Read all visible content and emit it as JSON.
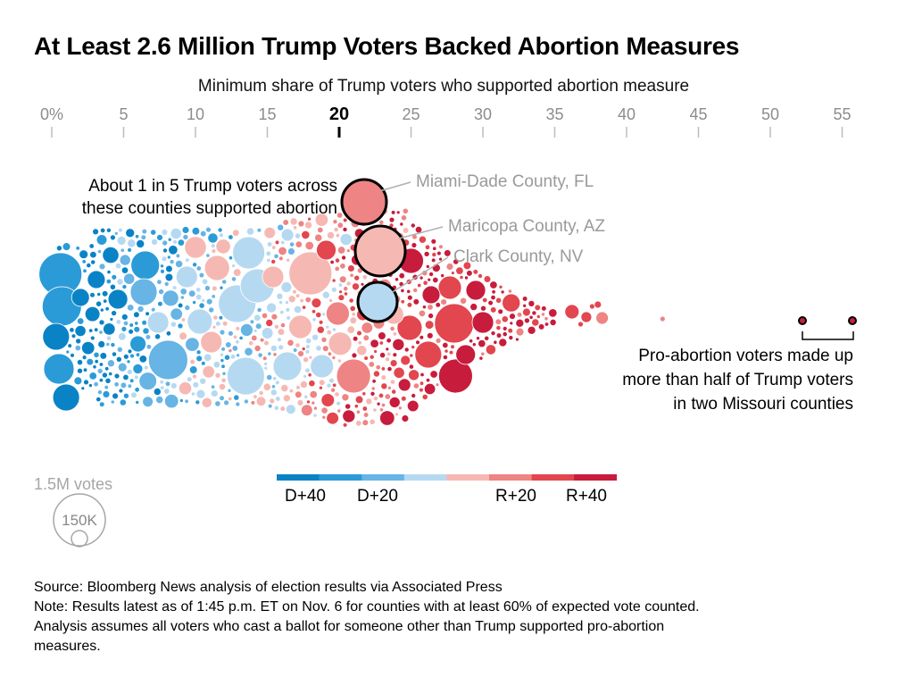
{
  "chart_data": {
    "type": "scatter",
    "title": "At Least 2.6 Million Trump Voters Backed Abortion Measures",
    "xlabel": "Minimum share of Trump voters who supported abortion measure",
    "xlim": [
      0,
      57
    ],
    "x_ticks": [
      "0%",
      "5",
      "10",
      "15",
      "20",
      "25",
      "30",
      "35",
      "40",
      "45",
      "50",
      "55"
    ],
    "x_tick_values": [
      0,
      5,
      10,
      15,
      20,
      25,
      30,
      35,
      40,
      45,
      50,
      55
    ],
    "highlight_tick": "20",
    "size_legend": {
      "large_label": "1.5M votes",
      "small_label": "150K"
    },
    "color_scale": {
      "colors": [
        "#0a83c6",
        "#2b9bd8",
        "#67b4e5",
        "#b6d9f2",
        "#f6b8b3",
        "#ee8484",
        "#e2464e",
        "#c81c3c"
      ],
      "labels": [
        "D+40",
        "D+20",
        "R+20",
        "R+40"
      ]
    },
    "annotations": {
      "main": [
        "About 1 in 5 Trump voters across",
        "these counties supported abortion"
      ],
      "missouri": [
        "Pro-abortion voters made up",
        "more than half of Trump voters",
        "in two Missouri counties"
      ]
    },
    "highlighted_counties": [
      {
        "name": "Miami-Dade County, FL",
        "x": 21.8,
        "margin": "R+20",
        "color": "#ee8484"
      },
      {
        "name": "Maricopa County, AZ",
        "x": 22.8,
        "margin": "R+10",
        "color": "#f6b8b3"
      },
      {
        "name": "Clark County, NV",
        "x": 22.4,
        "margin": "D+5",
        "color": "#b6d9f2"
      }
    ],
    "missouri_counties": [
      {
        "x": 52.5
      },
      {
        "x": 56.0
      }
    ]
  },
  "footer": {
    "source": "Source: Bloomberg News analysis of election results via Associated Press",
    "note_line1": "Note: Results latest as of 1:45 p.m. ET on Nov. 6 for counties with at least 60% of expected vote counted.",
    "note_line2": "Analysis assumes all voters who cast a ballot for someone other than Trump supported pro-abortion",
    "note_line3": "measures."
  }
}
